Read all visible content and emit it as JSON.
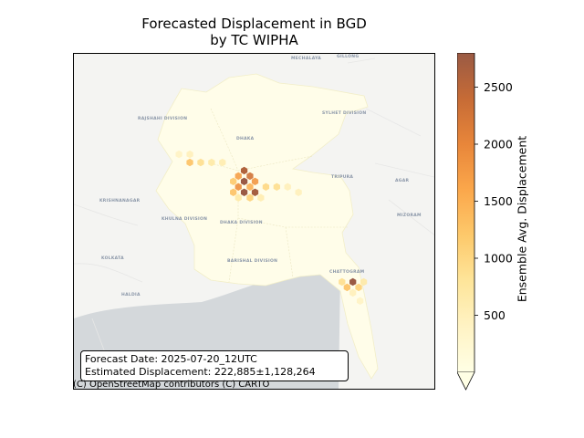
{
  "title_line1": "Forecasted Displacement in BGD",
  "title_line2": "by TC WIPHA",
  "info_box": {
    "forecast_date": "Forecast Date: 2025-07-20_12UTC",
    "estimated_displacement": "Estimated Displacement: 222,885±1,128,264"
  },
  "attribution": "(C) OpenStreetMap contributors (C) CARTO",
  "map_labels": [
    {
      "text": "MECHALAYA"
    },
    {
      "text": "GILLONG"
    },
    {
      "text": "RAJSHAHI DIVISION"
    },
    {
      "text": "DHAKA"
    },
    {
      "text": "SYLHET DIVISION"
    },
    {
      "text": "TRIPURA"
    },
    {
      "text": "AGAR"
    },
    {
      "text": "MIZORAM"
    },
    {
      "text": "KRISHNANAGAR"
    },
    {
      "text": "KHULNA DIVISION"
    },
    {
      "text": "BARISHAL DIVISION"
    },
    {
      "text": "CHATTOGRAM"
    },
    {
      "text": "KOLKATA"
    },
    {
      "text": "HALDIA"
    },
    {
      "text": "DHAKA DIVISION"
    }
  ],
  "chart_data": {
    "type": "heatmap",
    "colorbar": {
      "label": "Ensemble Avg. Displacement",
      "ticks": [
        500,
        1000,
        1500,
        2000,
        2500
      ],
      "range": [
        0,
        2800
      ],
      "extend": "min",
      "colormap": [
        "#ffffe5",
        "#fff3c4",
        "#fee59a",
        "#fdc96b",
        "#fba74b",
        "#e8863a",
        "#c66b36",
        "#9a5a44"
      ]
    },
    "hex_values": [
      {
        "lon": 89.55,
        "lat": 24.8,
        "v": 1300
      },
      {
        "lon": 89.7,
        "lat": 24.8,
        "v": 900
      },
      {
        "lon": 89.85,
        "lat": 24.8,
        "v": 700
      },
      {
        "lon": 90.0,
        "lat": 24.8,
        "v": 600
      },
      {
        "lon": 89.4,
        "lat": 24.95,
        "v": 400
      },
      {
        "lon": 89.55,
        "lat": 24.95,
        "v": 500
      },
      {
        "lon": 90.3,
        "lat": 24.65,
        "v": 2600
      },
      {
        "lon": 90.22,
        "lat": 24.55,
        "v": 1700
      },
      {
        "lon": 90.38,
        "lat": 24.55,
        "v": 2300
      },
      {
        "lon": 90.3,
        "lat": 24.45,
        "v": 2800
      },
      {
        "lon": 90.15,
        "lat": 24.45,
        "v": 1200
      },
      {
        "lon": 90.45,
        "lat": 24.45,
        "v": 1800
      },
      {
        "lon": 90.22,
        "lat": 24.35,
        "v": 1900
      },
      {
        "lon": 90.38,
        "lat": 24.35,
        "v": 1500
      },
      {
        "lon": 90.3,
        "lat": 24.25,
        "v": 2800
      },
      {
        "lon": 90.15,
        "lat": 24.25,
        "v": 1300
      },
      {
        "lon": 90.45,
        "lat": 24.25,
        "v": 2700
      },
      {
        "lon": 90.6,
        "lat": 24.35,
        "v": 1000
      },
      {
        "lon": 90.75,
        "lat": 24.35,
        "v": 900
      },
      {
        "lon": 90.38,
        "lat": 24.15,
        "v": 1100
      },
      {
        "lon": 90.22,
        "lat": 24.15,
        "v": 700
      },
      {
        "lon": 90.53,
        "lat": 24.15,
        "v": 600
      },
      {
        "lon": 90.9,
        "lat": 24.35,
        "v": 500
      },
      {
        "lon": 91.05,
        "lat": 24.25,
        "v": 500
      },
      {
        "lon": 91.8,
        "lat": 22.6,
        "v": 2800
      },
      {
        "lon": 91.72,
        "lat": 22.5,
        "v": 1300
      },
      {
        "lon": 91.88,
        "lat": 22.5,
        "v": 1100
      },
      {
        "lon": 91.65,
        "lat": 22.6,
        "v": 900
      },
      {
        "lon": 91.95,
        "lat": 22.6,
        "v": 700
      },
      {
        "lon": 91.8,
        "lat": 22.4,
        "v": 500
      },
      {
        "lon": 91.9,
        "lat": 22.25,
        "v": 400
      }
    ]
  }
}
